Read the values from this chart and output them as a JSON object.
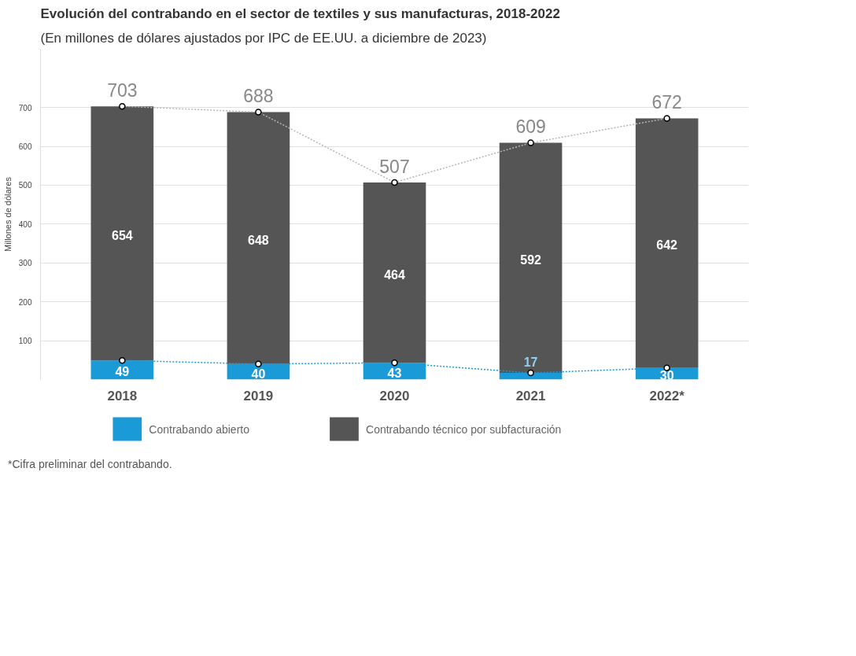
{
  "chart_data": {
    "type": "bar",
    "title": "Evolución del contrabando en el sector de textiles y sus manufacturas, 2018-2022",
    "subtitle": "(En millones de dólares ajustados por IPC de EE.UU. a diciembre de 2023)",
    "ylabel": "Millones de dólares",
    "categories": [
      "2018",
      "2019",
      "2020",
      "2021",
      "2022*"
    ],
    "stacked": true,
    "series": [
      {
        "name": "Contrabando abierto",
        "color": "#1a9ad6",
        "values": [
          49,
          40,
          43,
          17,
          30
        ],
        "value_labels": [
          "49",
          "40",
          "43",
          "17",
          "30"
        ]
      },
      {
        "name": "Contrabando técnico por subfacturación",
        "color": "#555555",
        "values": [
          654,
          648,
          464,
          592,
          642
        ],
        "value_labels": [
          "654",
          "648",
          "464",
          "592",
          "642"
        ]
      },
      {
        "type": "line",
        "color": "#b5b5b5",
        "values": [
          703,
          688,
          507,
          609,
          672
        ]
      },
      {
        "type": "line",
        "color": "#1a9ad6",
        "values": [
          49,
          40,
          43,
          17,
          30
        ]
      }
    ],
    "totals": [
      "703",
      "688",
      "507",
      "609",
      "672"
    ],
    "marker": "circle",
    "line_style": "dotted",
    "ylim": [
      0,
      850
    ],
    "yticks": [
      100,
      200,
      300,
      400,
      500,
      600,
      700
    ],
    "grid": "y",
    "legend": "bottom",
    "annotations": [
      "*Cifra preliminar del contrabando."
    ]
  }
}
